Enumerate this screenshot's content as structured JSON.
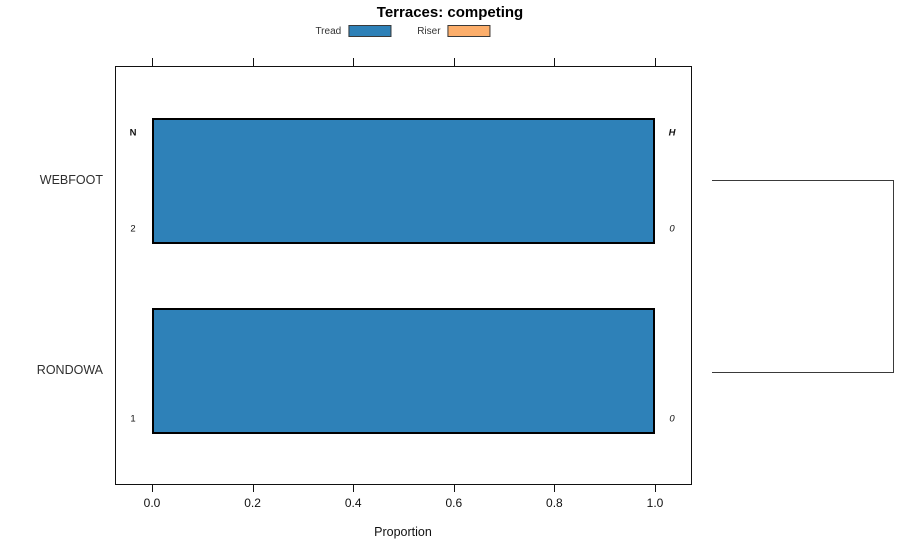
{
  "figure": {
    "title": "Terraces: competing",
    "xlabel": "Proportion"
  },
  "legend": {
    "position": "top",
    "entries": [
      {
        "label": "Tread",
        "color": "#2E81B8"
      },
      {
        "label": "Riser",
        "color": "#FCAE6B"
      }
    ]
  },
  "chart_data": {
    "type": "bar",
    "orientation": "horizontal",
    "title": "Terraces: competing",
    "xlabel": "Proportion",
    "ylabel": "",
    "xlim": [
      0,
      1.08
    ],
    "x_ticks": [
      0.0,
      0.2,
      0.4,
      0.6,
      0.8,
      1.0
    ],
    "x_tick_labels": [
      "0.0",
      "0.2",
      "0.4",
      "0.6",
      "0.8",
      "1.0"
    ],
    "categories": [
      "WEBFOOT",
      "RONDOWA"
    ],
    "series": [
      {
        "name": "Tread",
        "color": "#2E81B8",
        "values": [
          1.0,
          1.0
        ]
      },
      {
        "name": "Riser",
        "color": "#FCAE6B",
        "values": [
          0.0,
          0.0
        ]
      }
    ],
    "grid": false,
    "legend_position": "top",
    "side_columns": {
      "left_header": "N",
      "right_header": "H",
      "left_values": [
        "2",
        "1"
      ],
      "right_values": [
        "0",
        "0"
      ]
    },
    "annotations": [
      {
        "row": "WEBFOOT",
        "position": "left-top",
        "text": "N",
        "style": "bold"
      },
      {
        "row": "WEBFOOT",
        "position": "left-bottom",
        "text": "2",
        "style": "normal"
      },
      {
        "row": "WEBFOOT",
        "position": "right-top",
        "text": "H",
        "style": "bold-italic"
      },
      {
        "row": "WEBFOOT",
        "position": "right-bottom",
        "text": "0",
        "style": "italic"
      },
      {
        "row": "RONDOWA",
        "position": "left-bottom",
        "text": "1",
        "style": "normal"
      },
      {
        "row": "RONDOWA",
        "position": "right-bottom",
        "text": "0",
        "style": "italic"
      }
    ],
    "bracket": {
      "side": "right",
      "connects": [
        "WEBFOOT",
        "RONDOWA"
      ]
    }
  }
}
